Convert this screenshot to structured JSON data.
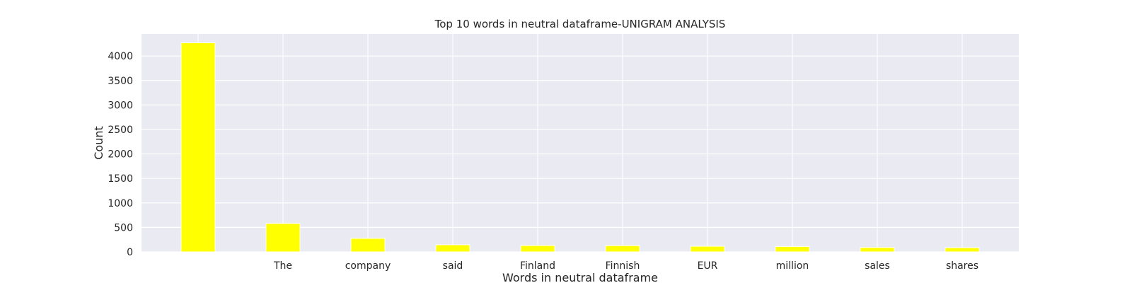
{
  "chart_data": {
    "type": "bar",
    "title": "Top 10 words in neutral dataframe-UNIGRAM ANALYSIS",
    "xlabel": "Words in neutral dataframe",
    "ylabel": "Count",
    "categories": [
      "",
      "The",
      "company",
      "said",
      "Finland",
      "Finnish",
      "EUR",
      "million",
      "sales",
      "shares"
    ],
    "values": [
      4270,
      580,
      275,
      145,
      130,
      128,
      115,
      110,
      90,
      85
    ],
    "ylim": [
      0,
      4450
    ],
    "yticks": [
      0,
      500,
      1000,
      1500,
      2000,
      2500,
      3000,
      3500,
      4000
    ],
    "grid": true,
    "bar_color": "#ffff00",
    "plot_bg": "#eaeaf2"
  }
}
